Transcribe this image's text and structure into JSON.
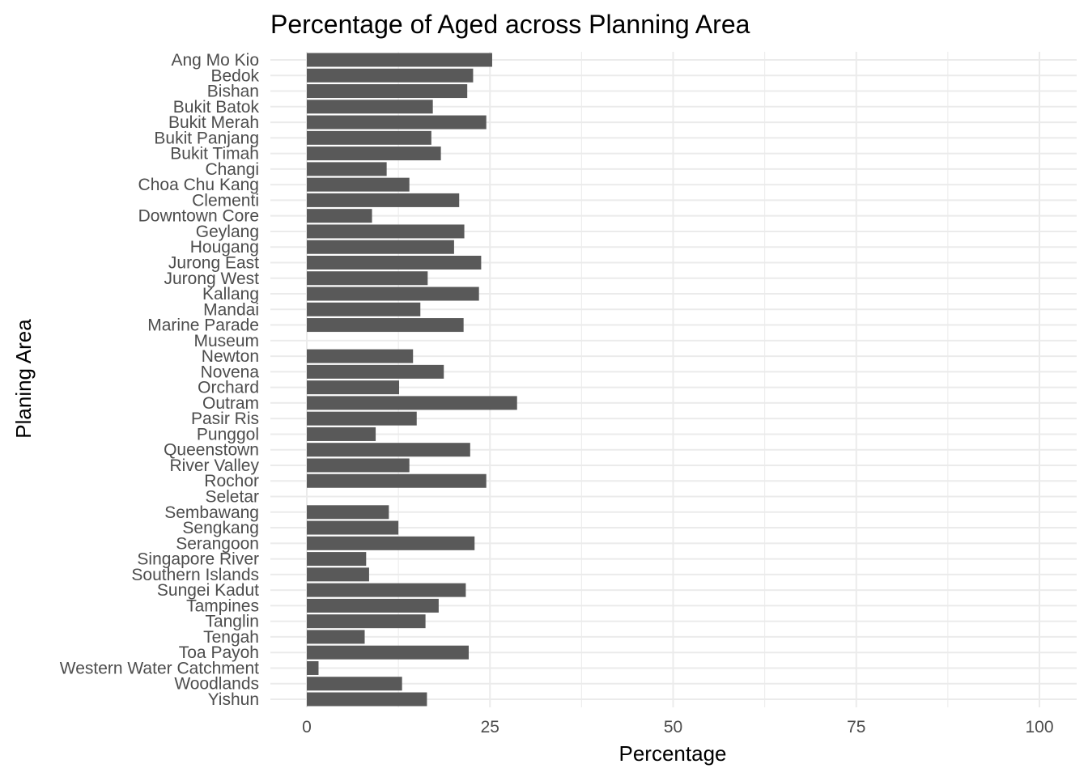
{
  "chart_data": {
    "type": "bar",
    "orientation": "horizontal",
    "title": "Percentage of Aged across Planning Area",
    "xlabel": "Percentage",
    "ylabel": "Planing Area",
    "xlim": [
      0,
      100
    ],
    "xticks": [
      0,
      25,
      50,
      75,
      100
    ],
    "grid": true,
    "bar_color": "#595959",
    "grid_color": "#ebebeb",
    "categories": [
      "Ang Mo Kio",
      "Bedok",
      "Bishan",
      "Bukit Batok",
      "Bukit Merah",
      "Bukit Panjang",
      "Bukit Timah",
      "Changi",
      "Choa Chu Kang",
      "Clementi",
      "Downtown Core",
      "Geylang",
      "Hougang",
      "Jurong East",
      "Jurong West",
      "Kallang",
      "Mandai",
      "Marine Parade",
      "Museum",
      "Newton",
      "Novena",
      "Orchard",
      "Outram",
      "Pasir Ris",
      "Punggol",
      "Queenstown",
      "River Valley",
      "Rochor",
      "Seletar",
      "Sembawang",
      "Sengkang",
      "Serangoon",
      "Singapore River",
      "Southern Islands",
      "Sungei Kadut",
      "Tampines",
      "Tanglin",
      "Tengah",
      "Toa Payoh",
      "Western Water Catchment",
      "Woodlands",
      "Yishun"
    ],
    "values": [
      25.3,
      22.7,
      21.9,
      17.2,
      24.5,
      17.0,
      18.3,
      10.9,
      14.0,
      20.8,
      8.9,
      21.5,
      20.1,
      23.8,
      16.5,
      23.5,
      15.5,
      21.4,
      0,
      14.5,
      18.7,
      12.6,
      28.7,
      15.0,
      9.4,
      22.3,
      14.0,
      24.5,
      0,
      11.2,
      12.5,
      22.9,
      8.1,
      8.5,
      21.7,
      18.0,
      16.2,
      7.9,
      22.1,
      1.6,
      13.0,
      16.4
    ]
  }
}
